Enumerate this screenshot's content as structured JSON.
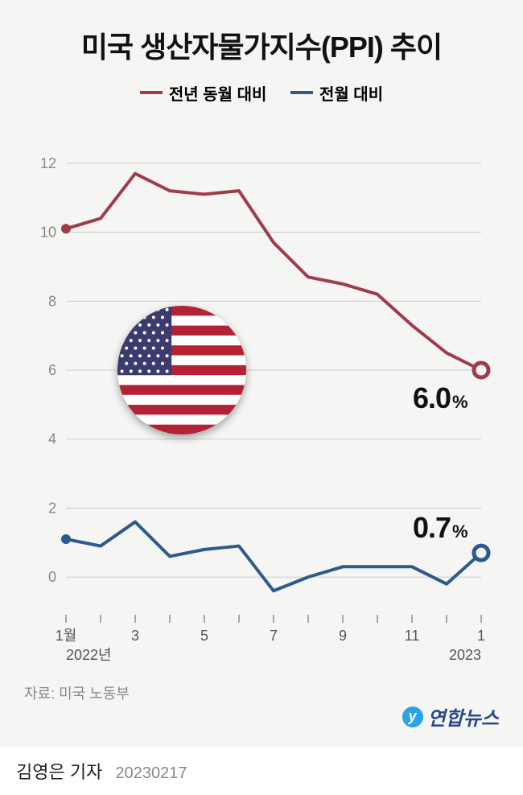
{
  "title": "미국 생산자물가지수(PPI) 추이",
  "legend": {
    "yoy": {
      "label": "전년 동월 대비",
      "color": "#a03b4a"
    },
    "mom": {
      "label": "전월 대비",
      "color": "#2d5a8c"
    }
  },
  "chart": {
    "type": "line",
    "background_color": "#f5f5f3",
    "grid_color": "#bfbfbf",
    "axis_color": "#888888",
    "line_width": 4,
    "marker_radius": 9,
    "marker_stroke": 5,
    "ylim": [
      -1,
      13
    ],
    "yticks": [
      0,
      2,
      4,
      6,
      8,
      10,
      12
    ],
    "x_labels": [
      "1월",
      "",
      "3",
      "",
      "5",
      "",
      "7",
      "",
      "9",
      "",
      "11",
      "",
      "1"
    ],
    "x_year_left": "2022년",
    "x_year_right": "2023",
    "series_yoy": {
      "color": "#a03b4a",
      "values": [
        10.1,
        10.4,
        11.7,
        11.2,
        11.1,
        11.2,
        9.7,
        8.7,
        8.5,
        8.2,
        7.3,
        6.5,
        6.0
      ],
      "end_label": "6.0",
      "end_unit": "%"
    },
    "series_mom": {
      "color": "#2d5a8c",
      "values": [
        1.1,
        0.9,
        1.6,
        0.6,
        0.8,
        0.9,
        -0.4,
        0.0,
        0.3,
        0.3,
        0.3,
        -0.2,
        0.7
      ],
      "end_label": "0.7",
      "end_unit": "%"
    },
    "flag": {
      "cx_pct": 28,
      "cy_pct": 50,
      "stripe_red": "#b22234",
      "stripe_white": "#ffffff",
      "canton_blue": "#3c3b6e",
      "star_color": "#ffffff"
    }
  },
  "source_label": "자료: 미국 노동부",
  "brand": {
    "icon": "y",
    "text": "연합뉴스",
    "color": "#2a4a8a"
  },
  "footer": {
    "author": "김영은 기자",
    "date": "20230217"
  }
}
